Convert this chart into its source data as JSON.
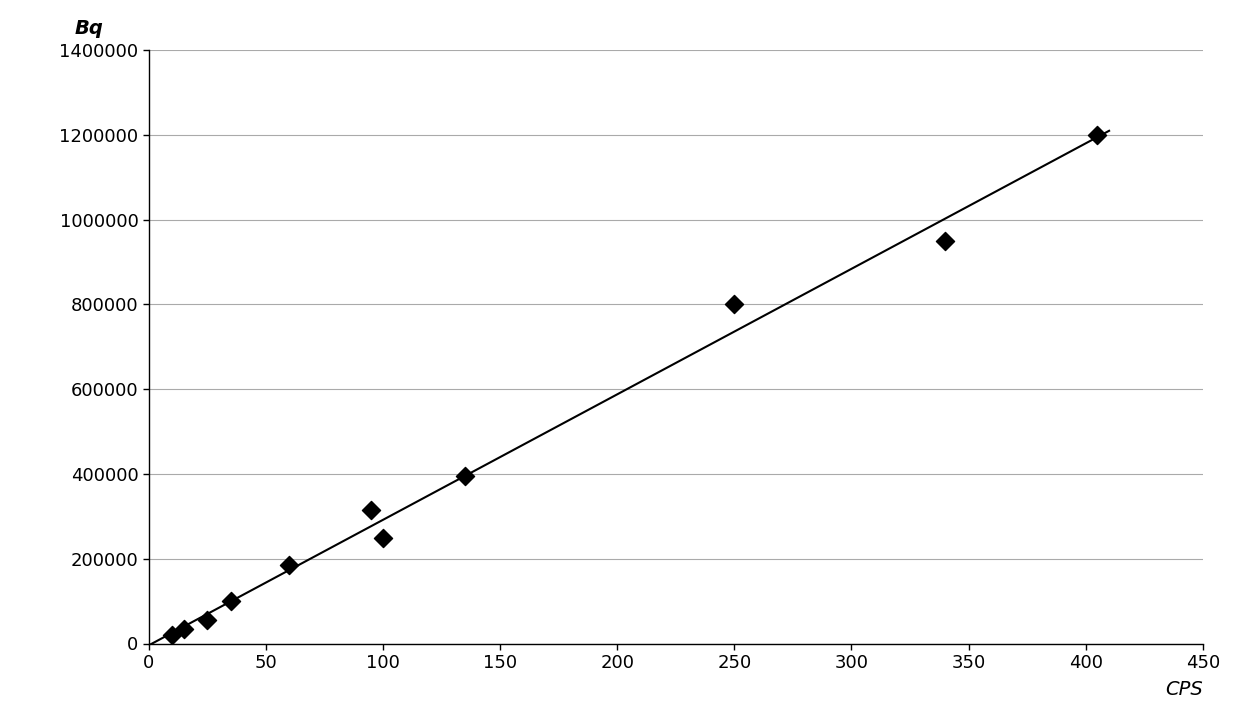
{
  "x_data": [
    10,
    15,
    25,
    35,
    60,
    95,
    100,
    135,
    250,
    340,
    405
  ],
  "y_data": [
    20000,
    35000,
    55000,
    100000,
    185000,
    315000,
    250000,
    395000,
    800000,
    950000,
    1200000
  ],
  "xlabel": "CPS",
  "ylabel": "Bq",
  "xlim": [
    0,
    450
  ],
  "ylim": [
    0,
    1400000
  ],
  "x_ticks": [
    0,
    50,
    100,
    150,
    200,
    250,
    300,
    350,
    400,
    450
  ],
  "y_ticks": [
    0,
    200000,
    400000,
    600000,
    800000,
    1000000,
    1200000,
    1400000
  ],
  "marker_color": "#000000",
  "marker_size": 85,
  "line_color": "#000000",
  "line_width": 1.5,
  "background_color": "#ffffff",
  "grid_color": "#aaaaaa",
  "grid_linewidth": 0.8,
  "label_fontsize": 14,
  "tick_fontsize": 13,
  "line_x_start": 0,
  "line_x_end": 410
}
